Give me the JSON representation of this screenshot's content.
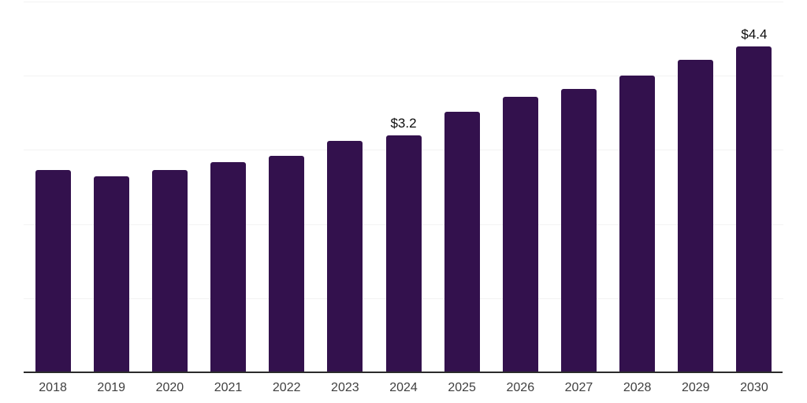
{
  "chart_data": {
    "type": "bar",
    "title": "",
    "xlabel": "",
    "ylabel": "",
    "categories": [
      "2018",
      "2019",
      "2020",
      "2021",
      "2022",
      "2023",
      "2024",
      "2025",
      "2026",
      "2027",
      "2028",
      "2029",
      "2030"
    ],
    "values": [
      2.73,
      2.64,
      2.73,
      2.83,
      2.92,
      3.12,
      3.2,
      3.51,
      3.72,
      3.82,
      4.0,
      4.21,
      4.4
    ],
    "point_labels": [
      "",
      "",
      "",
      "",
      "",
      "",
      "$3.2",
      "",
      "",
      "",
      "",
      "",
      "$4.4"
    ],
    "ylim": [
      0,
      5
    ],
    "gridlines": [
      1,
      2,
      3,
      4,
      5
    ],
    "grid": true,
    "legend": false,
    "y_tick_labels_shown": false,
    "colors": {
      "bar": "#33114d",
      "gridline": "#f3f3f3",
      "axis_line": "#2b2b2b",
      "tick_label": "#3f3f3f",
      "point_label": "#0d0d0d",
      "background": "#ffffff"
    }
  }
}
